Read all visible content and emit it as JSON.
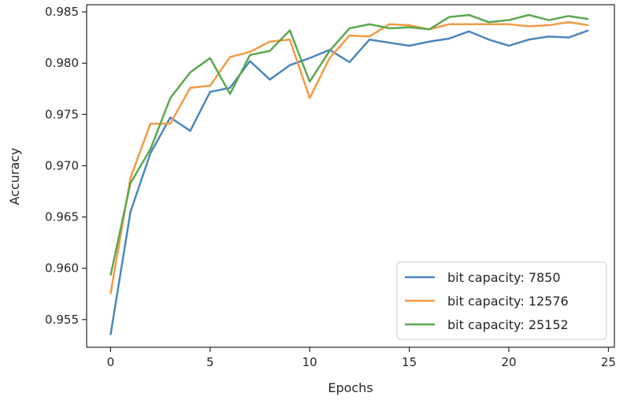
{
  "chart_data": {
    "type": "line",
    "title": "",
    "xlabel": "Epochs",
    "ylabel": "Accuracy",
    "xlim": [
      -1.2,
      25.3
    ],
    "ylim": [
      0.9523,
      0.9857
    ],
    "xticks": [
      0,
      5,
      10,
      15,
      20,
      25
    ],
    "yticks": [
      0.955,
      0.96,
      0.965,
      0.97,
      0.975,
      0.98,
      0.985
    ],
    "ytick_labels": [
      "0.955",
      "0.960",
      "0.965",
      "0.970",
      "0.975",
      "0.980",
      "0.985"
    ],
    "grid": false,
    "legend_position": "lower-right",
    "x": [
      0,
      1,
      2,
      3,
      4,
      5,
      6,
      7,
      8,
      9,
      10,
      11,
      12,
      13,
      14,
      15,
      16,
      17,
      18,
      19,
      20,
      21,
      22,
      23,
      24
    ],
    "series": [
      {
        "name": "bit capacity: 7850",
        "color": "#4b87bd",
        "values": [
          0.9535,
          0.9655,
          0.9712,
          0.9747,
          0.9734,
          0.9772,
          0.9776,
          0.9802,
          0.9784,
          0.9798,
          0.9805,
          0.9813,
          0.9801,
          0.9823,
          0.982,
          0.9817,
          0.9821,
          0.9824,
          0.9831,
          0.9823,
          0.9817,
          0.9823,
          0.9826,
          0.9825,
          0.9832
        ]
      },
      {
        "name": "bit capacity: 12576",
        "color": "#f39a46",
        "values": [
          0.9575,
          0.9688,
          0.9741,
          0.9741,
          0.9776,
          0.9778,
          0.9806,
          0.9811,
          0.9821,
          0.9823,
          0.9766,
          0.9805,
          0.9827,
          0.9826,
          0.9838,
          0.9837,
          0.9833,
          0.9838,
          0.9838,
          0.9838,
          0.9838,
          0.9836,
          0.9837,
          0.984,
          0.9837
        ]
      },
      {
        "name": "bit capacity: 25152",
        "color": "#5aa84f",
        "values": [
          0.9593,
          0.9683,
          0.9716,
          0.9766,
          0.9791,
          0.9805,
          0.977,
          0.9808,
          0.9812,
          0.9832,
          0.9782,
          0.9812,
          0.9834,
          0.9838,
          0.9834,
          0.9835,
          0.9833,
          0.9845,
          0.9847,
          0.984,
          0.9842,
          0.9847,
          0.9842,
          0.9846,
          0.9843
        ]
      }
    ]
  }
}
